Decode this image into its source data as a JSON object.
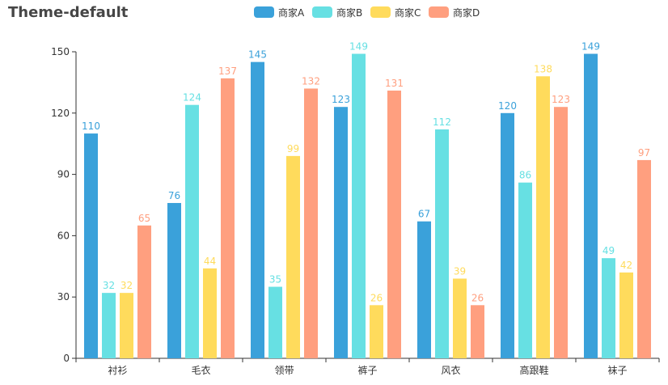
{
  "chart_data": {
    "type": "bar",
    "title": "Theme-default",
    "categories": [
      "衬衫",
      "毛衣",
      "领带",
      "裤子",
      "风衣",
      "高跟鞋",
      "袜子"
    ],
    "series": [
      {
        "name": "商家A",
        "color": "#3aa1da",
        "values": [
          110,
          76,
          145,
          123,
          67,
          120,
          149
        ]
      },
      {
        "name": "商家B",
        "color": "#67e0e3",
        "values": [
          32,
          124,
          35,
          149,
          112,
          86,
          49
        ]
      },
      {
        "name": "商家C",
        "color": "#ffdb5c",
        "values": [
          32,
          44,
          99,
          26,
          39,
          138,
          42
        ]
      },
      {
        "name": "商家D",
        "color": "#ff9f7f",
        "values": [
          65,
          137,
          132,
          131,
          26,
          123,
          97
        ]
      }
    ],
    "ylim": [
      0,
      150
    ],
    "yticks": [
      0,
      30,
      60,
      90,
      120,
      150
    ],
    "legend_position": "top-center",
    "grid": false
  }
}
